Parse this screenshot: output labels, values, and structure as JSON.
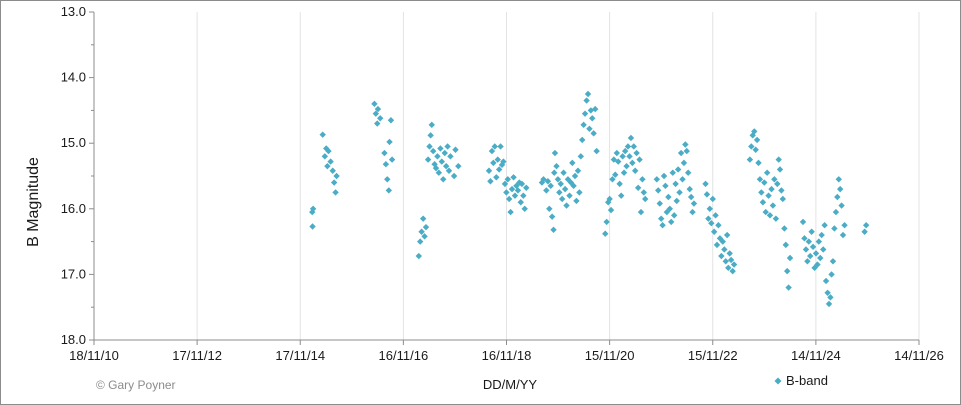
{
  "chart_data": {
    "type": "scatter",
    "title": "",
    "xlabel": "DD/M/YY",
    "ylabel": "B Magnitude",
    "x_ticks": [
      "18/11/10",
      "17/11/12",
      "17/11/14",
      "16/11/16",
      "16/11/18",
      "15/11/20",
      "15/11/22",
      "14/11/24",
      "14/11/26"
    ],
    "y_ticks": [
      "13.0",
      "14.0",
      "15.0",
      "16.0",
      "17.0",
      "18.0"
    ],
    "ylim": [
      13.0,
      18.0
    ],
    "y_inverted": true,
    "xlim": [
      "2010-11-18",
      "2026-11-14"
    ],
    "grid": true,
    "legend": {
      "position": "bottom-right",
      "entries": [
        "B-band"
      ]
    },
    "credit": "© Gary Poyner",
    "series": [
      {
        "name": "B-band",
        "color": "#4bacc6",
        "marker": "diamond",
        "points": [
          [
            "2015-02-10",
            16.05
          ],
          [
            "2015-02-12",
            16.27
          ],
          [
            "2015-02-16",
            16.0
          ],
          [
            "2015-04-25",
            14.87
          ],
          [
            "2015-05-10",
            15.2
          ],
          [
            "2015-05-20",
            15.08
          ],
          [
            "2015-05-28",
            15.35
          ],
          [
            "2015-06-05",
            15.12
          ],
          [
            "2015-06-20",
            15.28
          ],
          [
            "2015-07-05",
            15.42
          ],
          [
            "2015-07-15",
            15.6
          ],
          [
            "2015-07-25",
            15.75
          ],
          [
            "2015-08-01",
            15.5
          ],
          [
            "2016-04-25",
            14.4
          ],
          [
            "2016-05-05",
            14.55
          ],
          [
            "2016-05-15",
            14.7
          ],
          [
            "2016-05-20",
            14.48
          ],
          [
            "2016-06-05",
            14.62
          ],
          [
            "2016-07-05",
            15.15
          ],
          [
            "2016-07-15",
            15.32
          ],
          [
            "2016-07-25",
            15.55
          ],
          [
            "2016-08-05",
            15.72
          ],
          [
            "2016-08-10",
            14.98
          ],
          [
            "2016-08-20",
            14.65
          ],
          [
            "2016-08-28",
            15.25
          ],
          [
            "2017-03-05",
            16.72
          ],
          [
            "2017-03-15",
            16.5
          ],
          [
            "2017-03-25",
            16.35
          ],
          [
            "2017-04-05",
            16.15
          ],
          [
            "2017-04-15",
            16.42
          ],
          [
            "2017-04-25",
            16.28
          ],
          [
            "2017-05-10",
            15.25
          ],
          [
            "2017-05-20",
            15.05
          ],
          [
            "2017-05-28",
            14.88
          ],
          [
            "2017-06-05",
            14.72
          ],
          [
            "2017-06-15",
            15.12
          ],
          [
            "2017-06-25",
            15.32
          ],
          [
            "2017-07-05",
            15.38
          ],
          [
            "2017-07-15",
            15.2
          ],
          [
            "2017-07-25",
            15.45
          ],
          [
            "2017-08-05",
            15.08
          ],
          [
            "2017-08-15",
            15.28
          ],
          [
            "2017-08-25",
            15.55
          ],
          [
            "2017-09-05",
            15.15
          ],
          [
            "2017-09-15",
            15.35
          ],
          [
            "2017-09-25",
            15.05
          ],
          [
            "2017-10-05",
            15.42
          ],
          [
            "2017-10-15",
            15.2
          ],
          [
            "2017-11-10",
            15.5
          ],
          [
            "2017-11-20",
            15.1
          ],
          [
            "2017-12-10",
            15.35
          ],
          [
            "2018-07-15",
            15.42
          ],
          [
            "2018-07-25",
            15.58
          ],
          [
            "2018-08-05",
            15.12
          ],
          [
            "2018-08-15",
            15.3
          ],
          [
            "2018-08-25",
            15.05
          ],
          [
            "2018-09-05",
            15.52
          ],
          [
            "2018-09-15",
            15.25
          ],
          [
            "2018-09-25",
            15.4
          ],
          [
            "2018-10-05",
            15.05
          ],
          [
            "2018-10-15",
            15.33
          ],
          [
            "2018-10-25",
            15.28
          ],
          [
            "2018-11-05",
            15.62
          ],
          [
            "2018-11-15",
            15.75
          ],
          [
            "2018-11-25",
            15.55
          ],
          [
            "2018-12-05",
            15.85
          ],
          [
            "2018-12-15",
            16.05
          ],
          [
            "2018-12-25",
            15.7
          ],
          [
            "2019-01-05",
            15.52
          ],
          [
            "2019-01-15",
            15.8
          ],
          [
            "2019-01-25",
            15.65
          ],
          [
            "2019-02-05",
            15.72
          ],
          [
            "2019-02-15",
            15.6
          ],
          [
            "2019-02-25",
            15.9
          ],
          [
            "2019-03-05",
            15.62
          ],
          [
            "2019-03-15",
            15.8
          ],
          [
            "2019-03-25",
            16.0
          ],
          [
            "2019-04-05",
            15.68
          ],
          [
            "2019-07-25",
            15.6
          ],
          [
            "2019-08-05",
            15.55
          ],
          [
            "2019-08-25",
            15.72
          ],
          [
            "2019-09-05",
            15.58
          ],
          [
            "2019-09-15",
            16.0
          ],
          [
            "2019-09-25",
            15.65
          ],
          [
            "2019-10-05",
            16.12
          ],
          [
            "2019-10-15",
            16.32
          ],
          [
            "2019-10-20",
            15.45
          ],
          [
            "2019-10-25",
            15.15
          ],
          [
            "2019-11-05",
            15.35
          ],
          [
            "2019-11-15",
            15.55
          ],
          [
            "2019-11-25",
            15.75
          ],
          [
            "2019-12-05",
            15.62
          ],
          [
            "2019-12-15",
            15.85
          ],
          [
            "2019-12-25",
            15.45
          ],
          [
            "2020-01-05",
            15.7
          ],
          [
            "2020-01-15",
            15.95
          ],
          [
            "2020-01-25",
            15.55
          ],
          [
            "2020-02-05",
            15.8
          ],
          [
            "2020-02-15",
            15.6
          ],
          [
            "2020-02-25",
            15.3
          ],
          [
            "2020-03-05",
            15.65
          ],
          [
            "2020-03-15",
            15.5
          ],
          [
            "2020-03-25",
            15.88
          ],
          [
            "2020-04-05",
            15.42
          ],
          [
            "2020-04-15",
            15.75
          ],
          [
            "2020-04-25",
            15.2
          ],
          [
            "2020-05-05",
            14.95
          ],
          [
            "2020-05-15",
            14.72
          ],
          [
            "2020-05-25",
            14.55
          ],
          [
            "2020-06-05",
            14.35
          ],
          [
            "2020-06-15",
            14.25
          ],
          [
            "2020-06-25",
            14.78
          ],
          [
            "2020-07-05",
            14.5
          ],
          [
            "2020-07-15",
            14.62
          ],
          [
            "2020-07-25",
            14.85
          ],
          [
            "2020-08-05",
            14.48
          ],
          [
            "2020-08-15",
            15.12
          ],
          [
            "2020-10-15",
            16.38
          ],
          [
            "2020-10-25",
            16.2
          ],
          [
            "2020-11-05",
            15.9
          ],
          [
            "2020-11-15",
            15.85
          ],
          [
            "2020-11-25",
            16.02
          ],
          [
            "2020-12-05",
            15.55
          ],
          [
            "2020-12-15",
            15.25
          ],
          [
            "2020-12-25",
            15.48
          ],
          [
            "2021-01-05",
            15.15
          ],
          [
            "2021-01-15",
            15.28
          ],
          [
            "2021-01-25",
            15.62
          ],
          [
            "2021-02-05",
            15.8
          ],
          [
            "2021-02-15",
            15.2
          ],
          [
            "2021-02-25",
            15.45
          ],
          [
            "2021-03-05",
            15.12
          ],
          [
            "2021-03-15",
            15.35
          ],
          [
            "2021-03-25",
            15.05
          ],
          [
            "2021-04-05",
            15.2
          ],
          [
            "2021-04-15",
            14.92
          ],
          [
            "2021-04-25",
            15.3
          ],
          [
            "2021-05-05",
            15.05
          ],
          [
            "2021-05-15",
            15.42
          ],
          [
            "2021-05-25",
            15.15
          ],
          [
            "2021-06-05",
            15.68
          ],
          [
            "2021-06-15",
            15.25
          ],
          [
            "2021-06-25",
            16.05
          ],
          [
            "2021-07-05",
            15.55
          ],
          [
            "2021-07-15",
            15.75
          ],
          [
            "2021-07-25",
            15.85
          ],
          [
            "2021-10-15",
            15.55
          ],
          [
            "2021-10-25",
            15.72
          ],
          [
            "2021-11-05",
            15.92
          ],
          [
            "2021-11-15",
            16.15
          ],
          [
            "2021-11-25",
            16.25
          ],
          [
            "2021-12-05",
            15.5
          ],
          [
            "2021-12-15",
            15.65
          ],
          [
            "2021-12-25",
            16.05
          ],
          [
            "2022-01-05",
            15.82
          ],
          [
            "2022-01-15",
            16.0
          ],
          [
            "2022-01-25",
            16.2
          ],
          [
            "2022-02-05",
            15.45
          ],
          [
            "2022-02-15",
            16.1
          ],
          [
            "2022-02-25",
            15.62
          ],
          [
            "2022-03-05",
            15.88
          ],
          [
            "2022-03-15",
            15.4
          ],
          [
            "2022-03-25",
            15.75
          ],
          [
            "2022-04-05",
            15.15
          ],
          [
            "2022-04-15",
            15.55
          ],
          [
            "2022-04-25",
            15.3
          ],
          [
            "2022-05-05",
            15.02
          ],
          [
            "2022-05-15",
            15.12
          ],
          [
            "2022-05-25",
            15.45
          ],
          [
            "2022-06-05",
            15.7
          ],
          [
            "2022-06-15",
            15.82
          ],
          [
            "2022-06-25",
            16.05
          ],
          [
            "2022-07-05",
            15.92
          ],
          [
            "2022-09-25",
            15.62
          ],
          [
            "2022-10-05",
            15.78
          ],
          [
            "2022-10-15",
            16.15
          ],
          [
            "2022-10-25",
            16.0
          ],
          [
            "2022-11-05",
            16.22
          ],
          [
            "2022-11-15",
            15.85
          ],
          [
            "2022-11-25",
            16.35
          ],
          [
            "2022-12-05",
            16.1
          ],
          [
            "2022-12-15",
            16.55
          ],
          [
            "2022-12-25",
            16.25
          ],
          [
            "2023-01-05",
            16.45
          ],
          [
            "2023-01-15",
            16.72
          ],
          [
            "2023-01-25",
            16.5
          ],
          [
            "2023-02-05",
            16.62
          ],
          [
            "2023-02-15",
            16.8
          ],
          [
            "2023-02-25",
            16.4
          ],
          [
            "2023-03-05",
            16.9
          ],
          [
            "2023-03-15",
            16.68
          ],
          [
            "2023-03-25",
            16.78
          ],
          [
            "2023-04-05",
            16.95
          ],
          [
            "2023-04-15",
            16.85
          ],
          [
            "2023-08-05",
            15.25
          ],
          [
            "2023-08-15",
            15.05
          ],
          [
            "2023-08-25",
            14.88
          ],
          [
            "2023-09-05",
            14.82
          ],
          [
            "2023-09-15",
            15.1
          ],
          [
            "2023-09-25",
            14.95
          ],
          [
            "2023-10-05",
            15.3
          ],
          [
            "2023-10-15",
            15.55
          ],
          [
            "2023-10-25",
            15.75
          ],
          [
            "2023-11-05",
            15.9
          ],
          [
            "2023-11-15",
            15.6
          ],
          [
            "2023-11-25",
            16.05
          ],
          [
            "2023-12-05",
            15.45
          ],
          [
            "2023-12-15",
            15.8
          ],
          [
            "2023-12-25",
            16.1
          ],
          [
            "2024-01-05",
            15.7
          ],
          [
            "2024-01-15",
            15.95
          ],
          [
            "2024-01-25",
            15.55
          ],
          [
            "2024-02-05",
            16.15
          ],
          [
            "2024-02-15",
            15.62
          ],
          [
            "2024-02-25",
            15.25
          ],
          [
            "2024-03-05",
            15.4
          ],
          [
            "2024-03-15",
            15.72
          ],
          [
            "2024-03-25",
            15.85
          ],
          [
            "2024-04-05",
            16.3
          ],
          [
            "2024-04-15",
            16.55
          ],
          [
            "2024-04-25",
            16.95
          ],
          [
            "2024-05-05",
            17.2
          ],
          [
            "2024-05-15",
            16.75
          ],
          [
            "2024-08-15",
            16.2
          ],
          [
            "2024-08-25",
            16.45
          ],
          [
            "2024-09-05",
            16.62
          ],
          [
            "2024-09-15",
            16.8
          ],
          [
            "2024-09-25",
            16.5
          ],
          [
            "2024-10-05",
            16.72
          ],
          [
            "2024-10-15",
            16.35
          ],
          [
            "2024-10-25",
            16.58
          ],
          [
            "2024-11-05",
            16.9
          ],
          [
            "2024-11-15",
            16.68
          ],
          [
            "2024-11-25",
            16.85
          ],
          [
            "2024-12-05",
            16.5
          ],
          [
            "2024-12-15",
            16.75
          ],
          [
            "2024-12-25",
            16.4
          ],
          [
            "2025-01-05",
            16.62
          ],
          [
            "2025-01-15",
            16.25
          ],
          [
            "2025-01-25",
            17.1
          ],
          [
            "2025-02-05",
            17.28
          ],
          [
            "2025-02-15",
            17.45
          ],
          [
            "2025-02-25",
            17.35
          ],
          [
            "2025-03-05",
            17.0
          ],
          [
            "2025-03-15",
            16.8
          ],
          [
            "2025-03-25",
            16.3
          ],
          [
            "2025-04-05",
            16.05
          ],
          [
            "2025-04-15",
            15.82
          ],
          [
            "2025-04-25",
            15.55
          ],
          [
            "2025-05-05",
            15.7
          ],
          [
            "2025-05-15",
            15.95
          ],
          [
            "2025-05-25",
            16.4
          ],
          [
            "2025-06-05",
            16.25
          ],
          [
            "2025-10-25",
            16.35
          ],
          [
            "2025-11-05",
            16.25
          ]
        ]
      }
    ]
  }
}
